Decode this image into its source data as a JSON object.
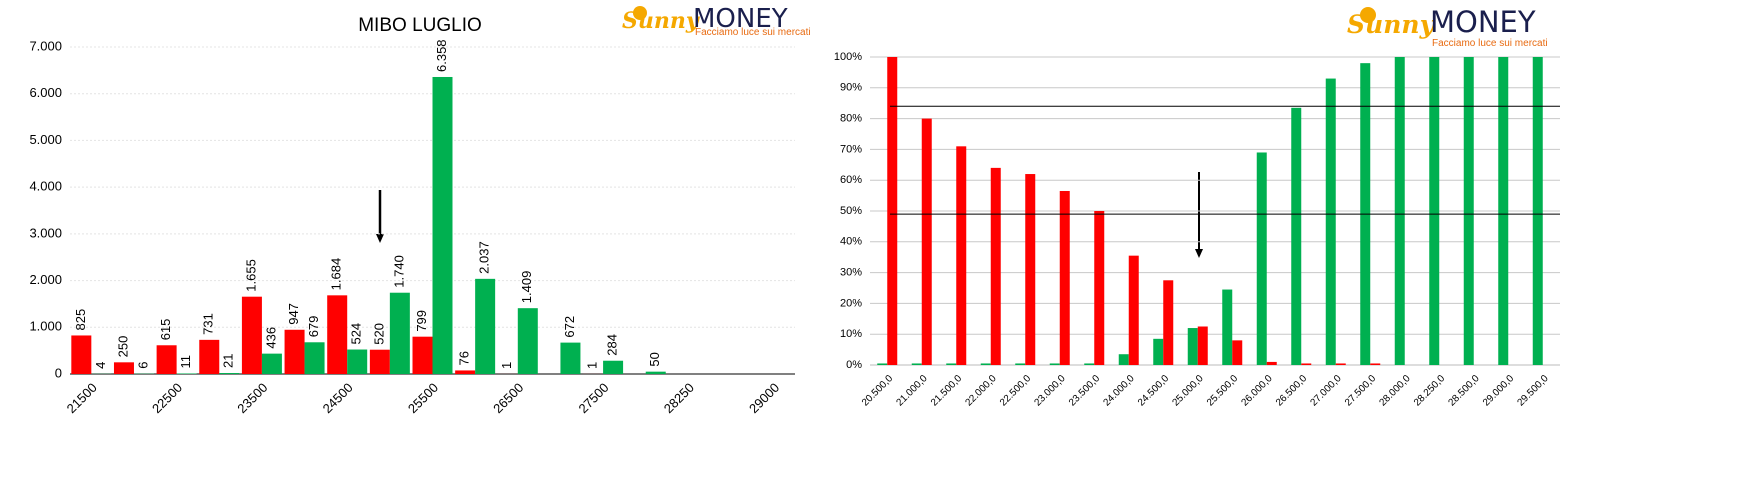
{
  "logo": {
    "brand_a": "Sunny",
    "brand_b": "MONEY",
    "tagline": "Facciamo luce sui mercati"
  },
  "chart_data": [
    {
      "type": "bar",
      "title": "MIBO LUGLIO",
      "categories": [
        "21500",
        null,
        "22500",
        null,
        "23500",
        null,
        "24500",
        null,
        "25500",
        null,
        "26500",
        null,
        "27500",
        null,
        "28250",
        null,
        "29000"
      ],
      "series": [
        {
          "color": "#ff0000",
          "values": [
            825,
            250,
            615,
            731,
            1655,
            947,
            1684,
            520,
            799,
            76,
            1,
            null,
            1,
            null,
            null,
            null,
            null
          ],
          "value_labels": [
            "825",
            "250",
            "615",
            "731",
            "1.655",
            "947",
            "1.684",
            "520",
            "799",
            "76",
            "1",
            null,
            "1",
            null,
            null,
            null,
            null
          ]
        },
        {
          "color": "#00b050",
          "values": [
            4,
            6,
            11,
            21,
            436,
            679,
            524,
            1740,
            6358,
            2037,
            1409,
            672,
            284,
            50,
            null,
            null,
            null
          ],
          "value_labels": [
            "4",
            "6",
            "11",
            "21",
            "436",
            "679",
            "524",
            "1.740",
            "6.358",
            "2.037",
            "1.409",
            "672",
            "284",
            "50",
            null,
            null,
            null
          ]
        }
      ],
      "ylim": [
        0,
        7000
      ],
      "yticks": [
        0,
        {
          "value": 1000,
          "label": "1.000"
        },
        {
          "value": 2000,
          "label": "2.000"
        },
        {
          "value": 3000,
          "label": "3.000"
        },
        {
          "value": 4000,
          "label": "4.000"
        },
        {
          "value": 5000,
          "label": "5.000"
        },
        {
          "value": 6000,
          "label": "6.000"
        },
        {
          "value": 7000,
          "label": "7.000"
        }
      ],
      "grid": true
    },
    {
      "type": "bar",
      "categories": [
        "20.500,0",
        "21.000,0",
        "21.500,0",
        "22.000,0",
        "22.500,0",
        "23.000,0",
        "23.500,0",
        "24.000,0",
        "24.500,0",
        "25.000,0",
        "25.500,0",
        "26.000,0",
        "26.500,0",
        "27.000,0",
        "27.500,0",
        "28.000,0",
        "28.250,0",
        "28.500,0",
        "29.000,0",
        "29.500,0"
      ],
      "series": [
        {
          "color": "#00b050",
          "values": [
            0.5,
            0.5,
            0.5,
            0.5,
            0.5,
            0.5,
            0.5,
            3.5,
            8.5,
            12,
            24.5,
            69,
            83.5,
            93,
            98,
            100,
            100,
            100,
            100,
            100
          ]
        },
        {
          "color": "#ff0000",
          "values": [
            100,
            80,
            71,
            64,
            62,
            56.5,
            50,
            35.5,
            27.5,
            12.5,
            8,
            1,
            0.5,
            0.5,
            0.5,
            null,
            null,
            null,
            null,
            null
          ]
        }
      ],
      "ylim": [
        0,
        100
      ],
      "yticks": [
        {
          "value": 0,
          "label": "0%"
        },
        {
          "value": 10,
          "label": "10%"
        },
        {
          "value": 20,
          "label": "20%"
        },
        {
          "value": 30,
          "label": "30%"
        },
        {
          "value": 40,
          "label": "40%"
        },
        {
          "value": 50,
          "label": "50%"
        },
        {
          "value": 60,
          "label": "60%"
        },
        {
          "value": 70,
          "label": "70%"
        },
        {
          "value": 80,
          "label": "80%"
        },
        {
          "value": 90,
          "label": "90%"
        },
        {
          "value": 100,
          "label": "100%"
        }
      ],
      "reference_lines": [
        84,
        49
      ],
      "grid": true
    }
  ]
}
